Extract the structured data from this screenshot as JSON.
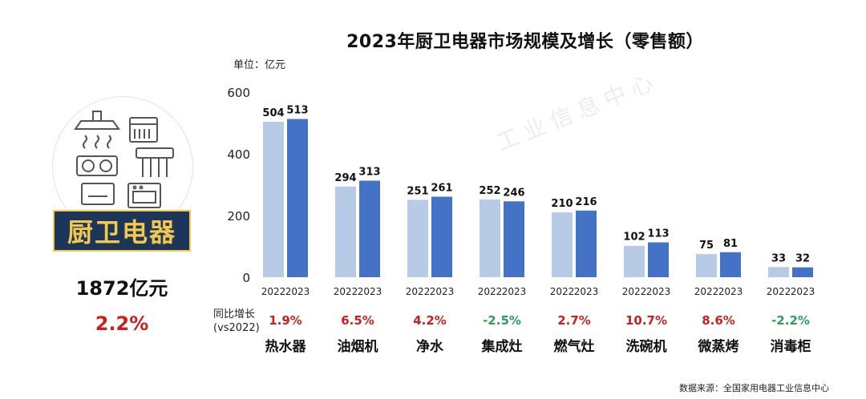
{
  "title": "2023年厨卫电器市场规模及增长（零售额）",
  "unit_label": "单位：亿元",
  "left_panel": {
    "category": "厨卫电器",
    "total": "1872亿元",
    "growth": "2.2%"
  },
  "yoy_label_line1": "同比增长",
  "yoy_label_line2": "(vs2022)",
  "source": "数据来源：全国家用电器工业信息中心",
  "colors": {
    "series_2022": "#b8cbe6",
    "series_2023": "#4472c4",
    "positive": "#cc1f1f",
    "negative": "#2e9e57",
    "banner_bg": "#1d3558",
    "banner_text": "#f2c94c"
  },
  "chart_data": {
    "type": "bar",
    "categories": [
      "热水器",
      "油烟机",
      "净水",
      "集成灶",
      "燃气灶",
      "洗碗机",
      "微蒸烤",
      "消毒柜"
    ],
    "series": [
      {
        "name": "2022",
        "values": [
          504,
          294,
          251,
          252,
          210,
          102,
          75,
          33
        ]
      },
      {
        "name": "2023",
        "values": [
          513,
          313,
          261,
          246,
          216,
          113,
          81,
          32
        ]
      }
    ],
    "yoy_growth": [
      "1.9%",
      "6.5%",
      "4.2%",
      "-2.5%",
      "2.7%",
      "10.7%",
      "8.6%",
      "-2.2%"
    ],
    "yticks": [
      0,
      200,
      400,
      600
    ],
    "ylim": [
      0,
      600
    ],
    "grid": false
  }
}
